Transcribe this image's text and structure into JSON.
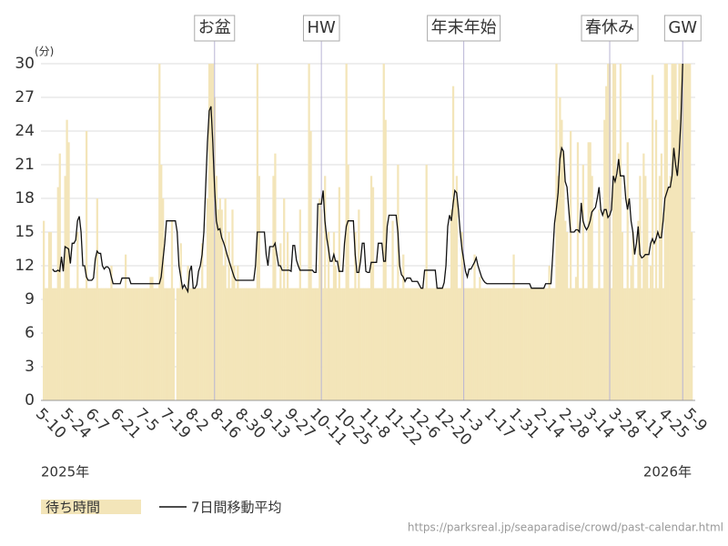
{
  "chart_data": {
    "type": "bar",
    "y_unit": "(分)",
    "year_labels": [
      "2025年",
      "2026年"
    ],
    "source": "https://parksreal.jp/seaparadise/crowd/past-calendar.html",
    "ylim": [
      0,
      30
    ],
    "yticks": [
      0,
      3,
      6,
      9,
      12,
      15,
      18,
      21,
      24,
      27,
      30
    ],
    "grid": true,
    "annotations": [
      {
        "text": "お盆",
        "x": 96
      },
      {
        "text": "HW",
        "x": 156
      },
      {
        "text": "年末年始",
        "x": 236
      },
      {
        "text": "春休み",
        "x": 318
      },
      {
        "text": "GW",
        "x": 359
      }
    ],
    "categories": [
      "5-10",
      null,
      null,
      null,
      null,
      null,
      null,
      null,
      null,
      null,
      null,
      null,
      null,
      null,
      "5-24",
      null,
      null,
      null,
      null,
      null,
      null,
      null,
      null,
      null,
      null,
      null,
      null,
      null,
      "6-7",
      null,
      null,
      null,
      null,
      null,
      null,
      null,
      null,
      null,
      null,
      null,
      null,
      null,
      "6-21",
      null,
      null,
      null,
      null,
      null,
      null,
      null,
      null,
      null,
      null,
      null,
      null,
      null,
      "7-5",
      null,
      null,
      null,
      null,
      null,
      null,
      null,
      null,
      null,
      null,
      null,
      null,
      null,
      "7-19",
      null,
      null,
      null,
      null,
      null,
      null,
      null,
      null,
      null,
      null,
      null,
      null,
      null,
      "8-2",
      null,
      null,
      null,
      null,
      null,
      null,
      null,
      null,
      null,
      null,
      null,
      null,
      null,
      "8-16",
      null,
      null,
      null,
      null,
      null,
      null,
      null,
      null,
      null,
      null,
      null,
      null,
      null,
      "8-30",
      null,
      null,
      null,
      null,
      null,
      null,
      null,
      null,
      null,
      null,
      null,
      null,
      null,
      "9-13",
      null,
      null,
      null,
      null,
      null,
      null,
      null,
      null,
      null,
      null,
      null,
      null,
      null,
      "9-27",
      null,
      null,
      null,
      null,
      null,
      null,
      null,
      null,
      null,
      null,
      null,
      null,
      null,
      "10-11",
      null,
      null,
      null,
      null,
      null,
      null,
      null,
      null,
      null,
      null,
      null,
      null,
      null,
      "10-25",
      null,
      null,
      null,
      null,
      null,
      null,
      null,
      null,
      null,
      null,
      null,
      null,
      null,
      "11-8",
      null,
      null,
      null,
      null,
      null,
      null,
      null,
      null,
      null,
      null,
      null,
      null,
      null,
      "11-22",
      null,
      null,
      null,
      null,
      null,
      null,
      null,
      null,
      null,
      null,
      null,
      null,
      null,
      "12-6",
      null,
      null,
      null,
      null,
      null,
      null,
      null,
      null,
      null,
      null,
      null,
      null,
      null,
      "12-20",
      null,
      null,
      null,
      null,
      null,
      null,
      null,
      null,
      null,
      null,
      null,
      null,
      null,
      "1-3",
      null,
      null,
      null,
      null,
      null,
      null,
      null,
      null,
      null,
      null,
      null,
      null,
      null,
      "1-17",
      null,
      null,
      null,
      null,
      null,
      null,
      null,
      null,
      null,
      null,
      null,
      null,
      null,
      "1-31",
      null,
      null,
      null,
      null,
      null,
      null,
      null,
      null,
      null,
      null,
      null,
      null,
      null,
      "2-14",
      null,
      null,
      null,
      null,
      null,
      null,
      null,
      null,
      null,
      null,
      null,
      null,
      null,
      "2-28",
      null,
      null,
      null,
      null,
      null,
      null,
      null,
      null,
      null,
      null,
      null,
      null,
      null,
      "3-14",
      null,
      null,
      null,
      null,
      null,
      null,
      null,
      null,
      null,
      null,
      null,
      null,
      null,
      "3-28",
      null,
      null,
      null,
      null,
      null,
      null,
      null,
      null,
      null,
      null,
      null,
      null,
      null,
      "4-11",
      null,
      null,
      null,
      null,
      null,
      null,
      null,
      null,
      null,
      null,
      null,
      null,
      null,
      "4-25",
      null,
      null,
      null,
      null,
      null,
      null,
      null,
      null,
      null,
      null,
      null,
      null,
      null,
      "5-9"
    ],
    "series": [
      {
        "name": "待ち時間",
        "color": "#f3e5b9",
        "values": [
          16,
          10,
          10,
          15,
          15,
          10,
          10,
          10,
          19,
          22,
          10,
          10,
          20,
          25,
          23,
          10,
          10,
          10,
          10,
          15,
          10,
          10,
          10,
          10,
          24,
          10,
          10,
          10,
          10,
          10,
          18,
          10,
          10,
          10,
          10,
          10,
          10,
          10,
          12,
          10,
          10,
          10,
          10,
          10,
          10,
          10,
          13,
          10,
          10,
          10,
          10,
          10,
          10,
          10,
          10,
          10,
          10,
          10,
          10,
          10,
          11,
          11,
          10,
          10,
          10,
          30,
          21,
          18,
          10,
          10,
          10,
          10,
          16,
          10,
          0,
          10,
          10,
          14,
          10,
          10,
          10,
          12,
          10,
          10,
          10,
          10,
          10,
          10,
          10,
          14,
          10,
          10,
          18,
          30,
          30,
          30,
          27,
          20,
          17,
          18,
          17,
          12,
          18,
          10,
          15,
          10,
          17,
          12,
          10,
          12,
          10,
          10,
          10,
          10,
          10,
          10,
          10,
          10,
          10,
          10,
          30,
          20,
          10,
          10,
          10,
          10,
          10,
          10,
          10,
          20,
          22,
          10,
          10,
          14,
          10,
          18,
          10,
          15,
          10,
          10,
          10,
          10,
          10,
          10,
          17,
          10,
          10,
          10,
          10,
          30,
          24,
          10,
          10,
          10,
          10,
          18,
          17,
          10,
          20,
          10,
          15,
          10,
          10,
          15,
          12,
          10,
          19,
          10,
          10,
          10,
          30,
          21,
          10,
          10,
          10,
          15,
          10,
          17,
          10,
          10,
          10,
          10,
          10,
          10,
          20,
          19,
          10,
          10,
          10,
          10,
          10,
          30,
          25,
          10,
          10,
          10,
          16,
          10,
          10,
          21,
          10,
          10,
          13,
          10,
          10,
          10,
          10,
          10,
          10,
          10,
          10,
          10,
          10,
          10,
          10,
          21,
          10,
          10,
          10,
          10,
          10,
          10,
          10,
          10,
          10,
          10,
          10,
          10,
          10,
          17,
          28,
          18,
          20,
          10,
          10,
          15,
          10,
          10,
          10,
          10,
          10,
          10,
          13,
          10,
          10,
          11,
          10,
          10,
          10,
          10,
          10,
          10,
          10,
          10,
          10,
          10,
          10,
          10,
          10,
          10,
          10,
          10,
          10,
          10,
          13,
          10,
          10,
          10,
          10,
          10,
          10,
          10,
          10,
          10,
          10,
          10,
          10,
          10,
          10,
          10,
          10,
          10,
          10,
          10,
          12,
          10,
          10,
          10,
          30,
          20,
          27,
          25,
          22,
          16,
          15,
          10,
          24,
          10,
          10,
          11,
          23,
          10,
          10,
          21,
          10,
          10,
          23,
          23,
          20,
          10,
          10,
          10,
          17,
          10,
          10,
          25,
          28,
          30,
          30,
          10,
          30,
          30,
          20,
          22,
          30,
          15,
          10,
          10,
          23,
          10,
          12,
          15,
          10,
          10,
          16,
          20,
          10,
          22,
          20,
          18,
          10,
          12,
          29,
          10,
          25,
          10,
          20,
          22,
          10,
          30,
          30,
          19,
          20,
          30,
          30,
          30,
          25,
          30,
          30,
          30,
          30,
          30,
          30,
          30,
          15
        ]
      },
      {
        "name": "7日間移動平均",
        "color": "#111111",
        "type": "line",
        "values": [
          null,
          null,
          null,
          null,
          null,
          11.7,
          11.5,
          11.5,
          11.6,
          11.5,
          12.8,
          11.5,
          13.7,
          13.6,
          13.5,
          12.2,
          14,
          14,
          14.3,
          16,
          16.4,
          15,
          12,
          12,
          11,
          10.7,
          10.7,
          10.7,
          10.9,
          12.6,
          13.3,
          13.1,
          13.1,
          12,
          11.7,
          11.9,
          11.9,
          11.7,
          11,
          10.4,
          10.4,
          10.4,
          10.4,
          10.4,
          10.9,
          10.9,
          10.9,
          10.9,
          10.9,
          10.4,
          10.4,
          10.4,
          10.4,
          10.4,
          10.4,
          10.4,
          10.4,
          10.4,
          10.4,
          10.4,
          10.4,
          10.4,
          10.4,
          10.4,
          10.4,
          10.4,
          11,
          12.5,
          14,
          16,
          16,
          16,
          16,
          16,
          16,
          15,
          12,
          11,
          10,
          10.3,
          10,
          9.7,
          11.5,
          12,
          10,
          10,
          10.3,
          11.5,
          12,
          13,
          15,
          19,
          23,
          25.8,
          26.2,
          23,
          19,
          16,
          15.2,
          15.3,
          14.5,
          14.1,
          13.6,
          13,
          12.5,
          12,
          11.5,
          11,
          10.7,
          10.7,
          10.7,
          10.7,
          10.7,
          10.7,
          10.7,
          10.7,
          10.7,
          10.7,
          10.7,
          12,
          15,
          15,
          15,
          15,
          15,
          13,
          12,
          13.7,
          13.7,
          13.7,
          14,
          13,
          12,
          12,
          11.6,
          11.6,
          11.6,
          11.6,
          11.6,
          11.5,
          13.8,
          13.8,
          12.5,
          12,
          11.6,
          11.6,
          11.6,
          11.6,
          11.6,
          11.6,
          11.6,
          11.6,
          11.4,
          11.4,
          17.5,
          17.5,
          17.5,
          18.7,
          16,
          14.5,
          13.5,
          12.4,
          12.4,
          13,
          12.4,
          12.4,
          11.5,
          11.5,
          11.5,
          14,
          15.5,
          16,
          16,
          16,
          16,
          13,
          11.4,
          11.4,
          12.4,
          14,
          14,
          11.5,
          11.4,
          11.4,
          12.3,
          12.3,
          12.3,
          12.3,
          14,
          14,
          14,
          12.4,
          12.4,
          15.5,
          16.5,
          16.5,
          16.5,
          16.5,
          16.5,
          15,
          12,
          11.2,
          11,
          10.6,
          10.9,
          10.9,
          10.9,
          10.6,
          10.6,
          10.6,
          10.6,
          10.3,
          10,
          10,
          11.6,
          11.6,
          11.6,
          11.6,
          11.6,
          11.6,
          11.6,
          10,
          10,
          10,
          10,
          10.5,
          12,
          15.5,
          16.5,
          16,
          17.5,
          18.7,
          18.5,
          17,
          15,
          13.5,
          12.5,
          11.5,
          11,
          11.7,
          11.7,
          12,
          12.3,
          12.7,
          12,
          11.5,
          11,
          10.7,
          10.5,
          10.4,
          10.4,
          10.4,
          10.4,
          10.4,
          10.4,
          10.4,
          10.4,
          10.4,
          10.4,
          10.4,
          10.4,
          10.4,
          10.4,
          10.4,
          10.4,
          10.4,
          10.4,
          10.4,
          10.4,
          10.4,
          10.4,
          10.4,
          10.4,
          10.4,
          10,
          10,
          10,
          10,
          10,
          10,
          10,
          10,
          10.4,
          10.4,
          10.4,
          10.4,
          13,
          15.8,
          17,
          18.5,
          21.5,
          22.5,
          22.2,
          19.5,
          19,
          17,
          15,
          15,
          15,
          15.2,
          15.2,
          15,
          17.6,
          16,
          15.5,
          15.2,
          15.5,
          16,
          16.8,
          17,
          17.2,
          18,
          19,
          17,
          16.5,
          17,
          17,
          16.3,
          16.5,
          17,
          20,
          19.5,
          20.2,
          21.5,
          20,
          20,
          20,
          18,
          17,
          18,
          16,
          15,
          13,
          14,
          15.5,
          13,
          12.7,
          12.8,
          13,
          13,
          13,
          14,
          14.4,
          14,
          14.4,
          15,
          14.5,
          14.5,
          16,
          18,
          18.5,
          19,
          19,
          20,
          22.5,
          21,
          20,
          22,
          25,
          30,
          null,
          null,
          null,
          null,
          null
        ]
      }
    ]
  }
}
